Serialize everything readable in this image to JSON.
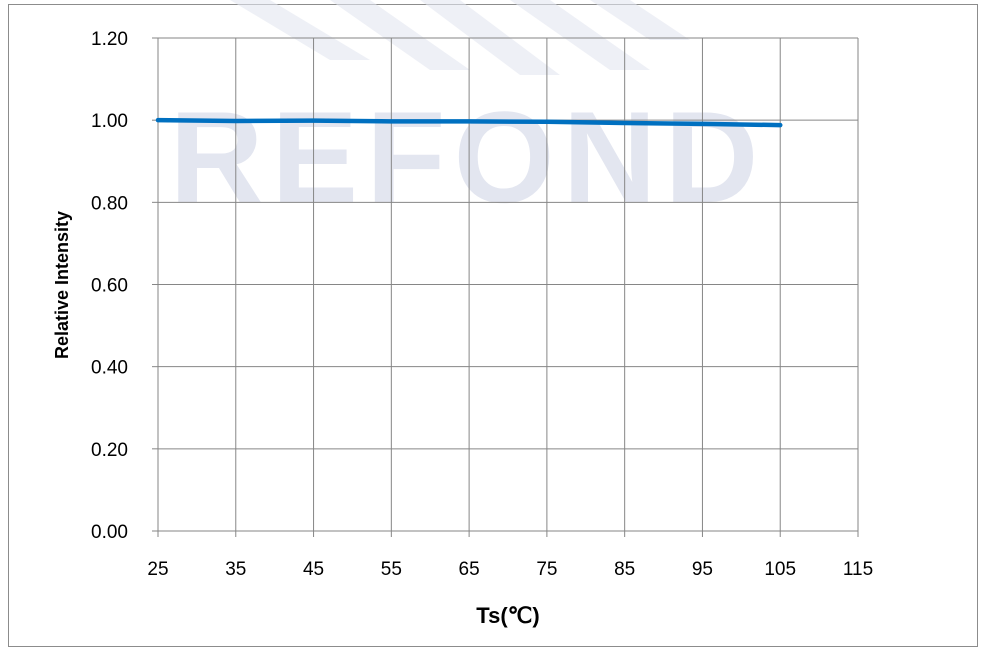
{
  "chart_data": {
    "type": "line",
    "title": "",
    "xlabel": "Ts(℃)",
    "ylabel": "Relative Intensity",
    "xlim": [
      25,
      115
    ],
    "ylim": [
      0,
      1.2
    ],
    "x_ticks": [
      "25",
      "35",
      "45",
      "55",
      "65",
      "75",
      "85",
      "95",
      "105",
      "115"
    ],
    "y_ticks": [
      "0.00",
      "0.20",
      "0.40",
      "0.60",
      "0.80",
      "1.00",
      "1.20"
    ],
    "grid": true,
    "legend": "none",
    "watermark": "REFOND",
    "series": [
      {
        "color": "#0070c0",
        "x": [
          25,
          35,
          45,
          55,
          65,
          75,
          85,
          95,
          105
        ],
        "values": [
          1.0,
          0.998,
          0.999,
          0.997,
          0.997,
          0.996,
          0.993,
          0.991,
          0.988
        ]
      }
    ],
    "colors": {
      "grid": "#868686",
      "axis": "#868686",
      "watermark": "#e3e6f0"
    }
  }
}
